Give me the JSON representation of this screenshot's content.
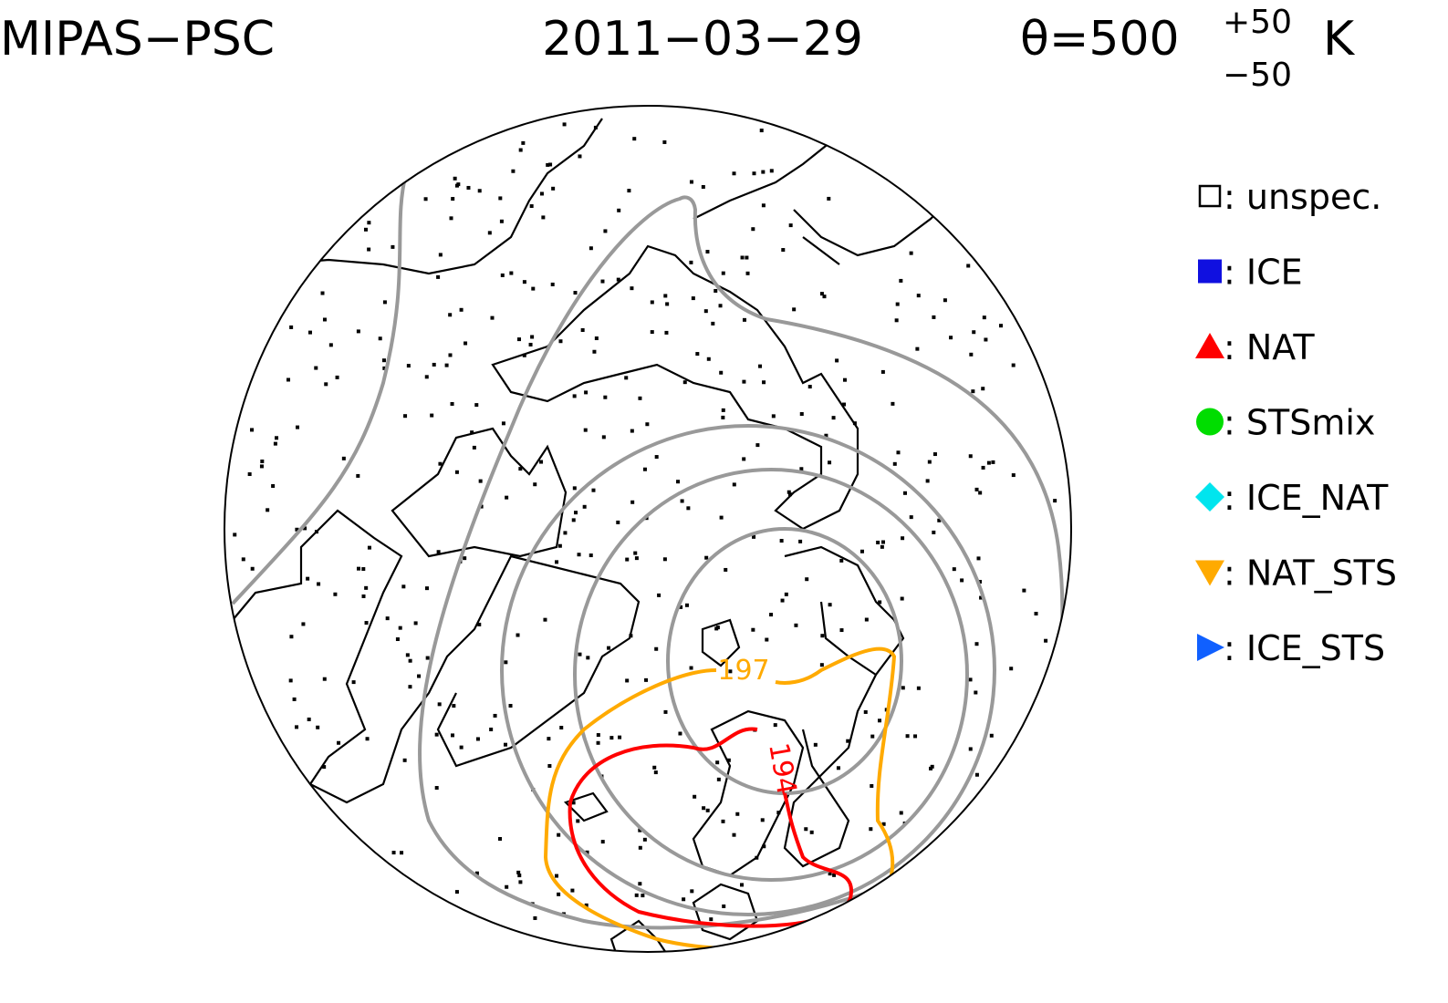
{
  "header": {
    "title": "MIPAS−PSC",
    "date": "2011−03−29",
    "theta": "θ=500",
    "theta_upper": "+50",
    "theta_lower": "−50",
    "unit": "K"
  },
  "legend": [
    {
      "label": ": unspec.",
      "color": "#000000",
      "marker": "square-open"
    },
    {
      "label": ": ICE",
      "color": "#1010e0",
      "marker": "square"
    },
    {
      "label": ": NAT",
      "color": "#ff0000",
      "marker": "triangle-up"
    },
    {
      "label": ": STSmix",
      "color": "#00dd00",
      "marker": "circle"
    },
    {
      "label": ": ICE_NAT",
      "color": "#00e5ee",
      "marker": "diamond"
    },
    {
      "label": ": NAT_STS",
      "color": "#ffaa00",
      "marker": "triangle-down"
    },
    {
      "label": ": ICE_STS",
      "color": "#1060ff",
      "marker": "triangle-right"
    }
  ],
  "contour_labels": [
    {
      "label": "197",
      "color": "#ffaa00"
    },
    {
      "label": "194",
      "color": "#ff0000"
    }
  ]
}
